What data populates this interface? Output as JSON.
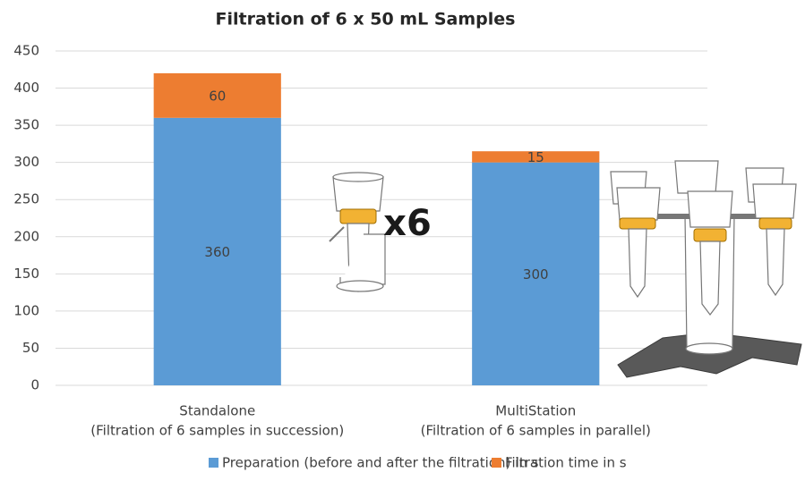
{
  "chart_data": {
    "type": "stacked-bar",
    "title": "Filtration of 6 x 50 mL Samples",
    "categories": [
      [
        "Standalone",
        "(Filtration of 6 samples in succession)"
      ],
      [
        "MultiStation",
        "(Filtration of 6 samples in parallel)"
      ]
    ],
    "series": [
      {
        "name": "Preparation (before and after the filtration) in s",
        "color": "#5b9bd5",
        "values": [
          360,
          300
        ]
      },
      {
        "name": "Filtration time in s",
        "color": "#ed7d31",
        "values": [
          60,
          15
        ]
      }
    ],
    "ylim": [
      0,
      450
    ],
    "yticks": [
      0,
      50,
      100,
      150,
      200,
      250,
      300,
      350,
      400,
      450
    ],
    "grid": true,
    "annotation": "x6"
  }
}
